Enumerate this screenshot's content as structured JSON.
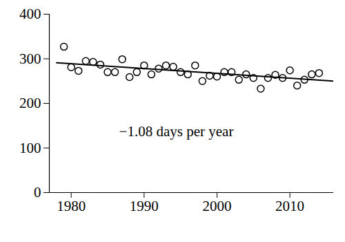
{
  "chart_data": {
    "type": "scatter",
    "annotation": "−1.08 days per year",
    "xlim": [
      1977,
      2016
    ],
    "ylim": [
      0,
      400
    ],
    "xticks": [
      1980,
      1990,
      2000,
      2010
    ],
    "yticks": [
      0,
      100,
      200,
      300,
      400
    ],
    "series": [
      {
        "type": "scatter",
        "marker": "circle",
        "color": "#000000",
        "x": [
          1979,
          1980,
          1981,
          1982,
          1983,
          1984,
          1985,
          1986,
          1987,
          1988,
          1989,
          1990,
          1991,
          1992,
          1993,
          1994,
          1995,
          1996,
          1997,
          1998,
          1999,
          2000,
          2001,
          2002,
          2003,
          2004,
          2005,
          2006,
          2007,
          2008,
          2009,
          2010,
          2011,
          2012,
          2013,
          2014
        ],
        "values": [
          327,
          281,
          273,
          295,
          293,
          287,
          270,
          270,
          299,
          259,
          270,
          285,
          265,
          278,
          285,
          282,
          270,
          265,
          285,
          250,
          262,
          260,
          270,
          270,
          253,
          265,
          257,
          233,
          257,
          264,
          257,
          274,
          240,
          253,
          265,
          268
        ]
      },
      {
        "type": "line",
        "color": "#000000",
        "x": [
          1978,
          2016
        ],
        "values": [
          291,
          250
        ]
      }
    ]
  }
}
